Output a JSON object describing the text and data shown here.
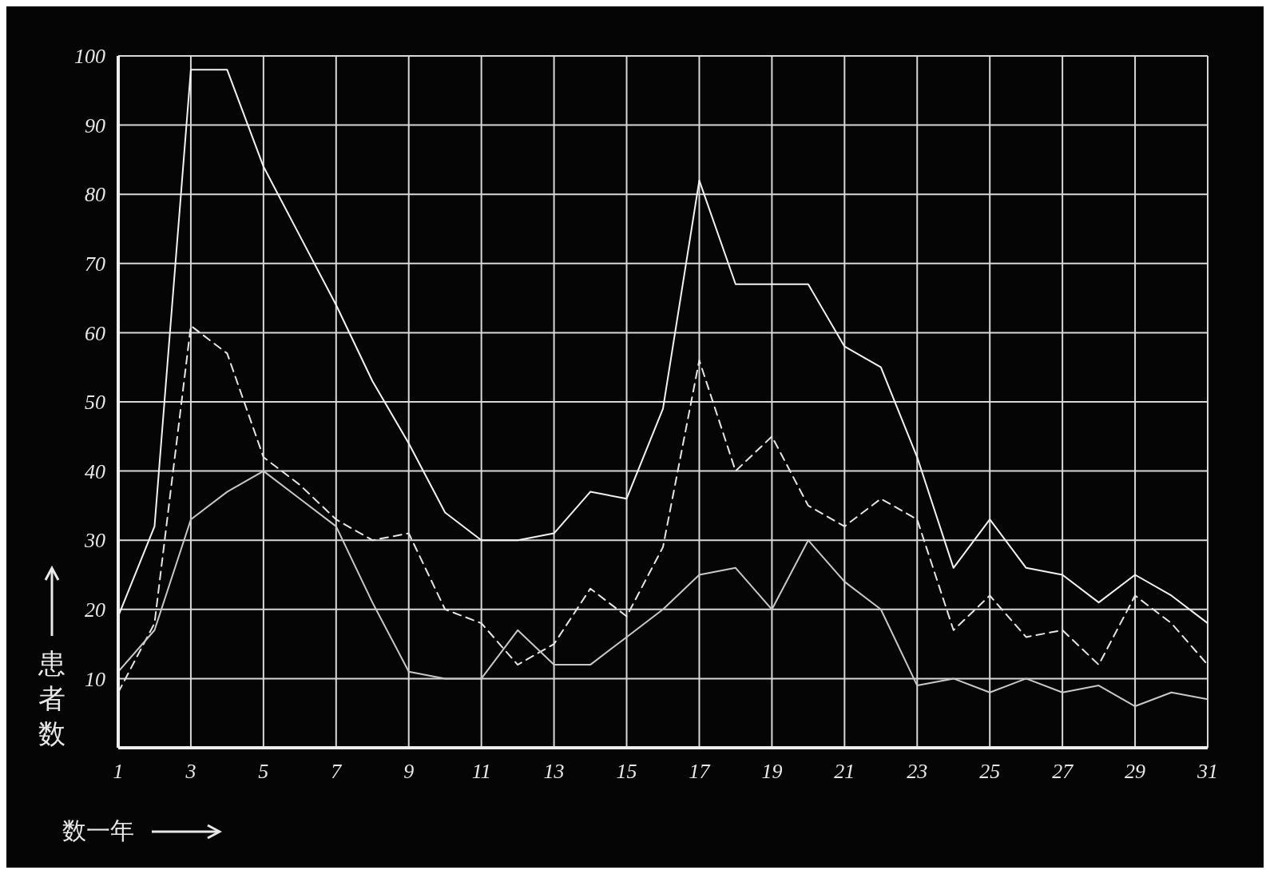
{
  "chart_data": {
    "type": "line",
    "xlabel": "数一年",
    "ylabel": "患者数",
    "x": [
      1,
      2,
      3,
      4,
      5,
      6,
      7,
      8,
      9,
      10,
      11,
      12,
      13,
      14,
      15,
      16,
      17,
      18,
      19,
      20,
      21,
      22,
      23,
      24,
      25,
      26,
      27,
      28,
      29,
      30,
      31
    ],
    "series": [
      {
        "color": "#f2f2f2",
        "line_style": "solid",
        "values": [
          19,
          32,
          98,
          98,
          84,
          74,
          64,
          53,
          44,
          34,
          30,
          30,
          31,
          37,
          36,
          49,
          82,
          67,
          67,
          67,
          58,
          55,
          42,
          26,
          33,
          26,
          25,
          21,
          25,
          22,
          18
        ]
      },
      {
        "color": "#e6e6e6",
        "line_style": "dashed",
        "values": [
          8,
          18,
          61,
          57,
          42,
          38,
          33,
          30,
          31,
          20,
          18,
          12,
          15,
          23,
          19,
          29,
          56,
          40,
          45,
          35,
          32,
          36,
          33,
          17,
          22,
          16,
          17,
          12,
          22,
          18,
          12
        ]
      },
      {
        "color": "#c8c8c8",
        "line_style": "solid",
        "values": [
          11,
          17,
          33,
          37,
          40,
          36,
          32,
          21,
          11,
          10,
          10,
          17,
          12,
          12,
          16,
          20,
          25,
          26,
          20,
          30,
          24,
          20,
          9,
          10,
          8,
          10,
          8,
          9,
          6,
          8,
          7
        ]
      }
    ],
    "xlim": [
      1,
      31
    ],
    "xticks": [
      1,
      3,
      5,
      7,
      9,
      11,
      13,
      15,
      17,
      19,
      21,
      23,
      25,
      27,
      29,
      31
    ],
    "ylim": [
      0,
      100
    ],
    "yticks": [
      10,
      20,
      30,
      40,
      50,
      60,
      70,
      80,
      90,
      100
    ],
    "grid": true,
    "legend": false,
    "marker": "none"
  }
}
